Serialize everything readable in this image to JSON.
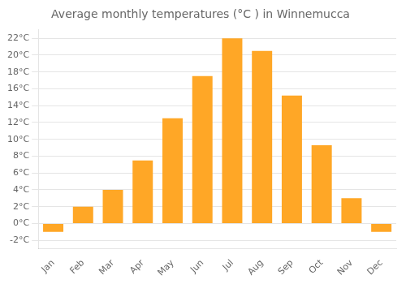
{
  "chart_data": {
    "type": "bar",
    "title": "Average monthly temperatures (°C ) in Winnemucca",
    "categories": [
      "Jan",
      "Feb",
      "Mar",
      "Apr",
      "May",
      "Jun",
      "Jul",
      "Aug",
      "Sep",
      "Oct",
      "Nov",
      "Dec"
    ],
    "values": [
      -1.0,
      2.0,
      4.0,
      7.5,
      12.5,
      17.5,
      22.0,
      20.5,
      15.2,
      9.3,
      3.0,
      -1.0
    ],
    "color": "#FFA726",
    "ylim": [
      -3,
      23
    ],
    "yticks": [
      {
        "value": -2,
        "label": "-2°C"
      },
      {
        "value": 0,
        "label": "0°C"
      },
      {
        "value": 2,
        "label": "2°C"
      },
      {
        "value": 4,
        "label": "4°C"
      },
      {
        "value": 6,
        "label": "6°C"
      },
      {
        "value": 8,
        "label": "8°C"
      },
      {
        "value": 10,
        "label": "10°C"
      },
      {
        "value": 12,
        "label": "12°C"
      },
      {
        "value": 14,
        "label": "14°C"
      },
      {
        "value": 16,
        "label": "16°C"
      },
      {
        "value": 18,
        "label": "18°C"
      },
      {
        "value": 20,
        "label": "20°C"
      },
      {
        "value": 22,
        "label": "22°C"
      }
    ],
    "grid": true
  }
}
